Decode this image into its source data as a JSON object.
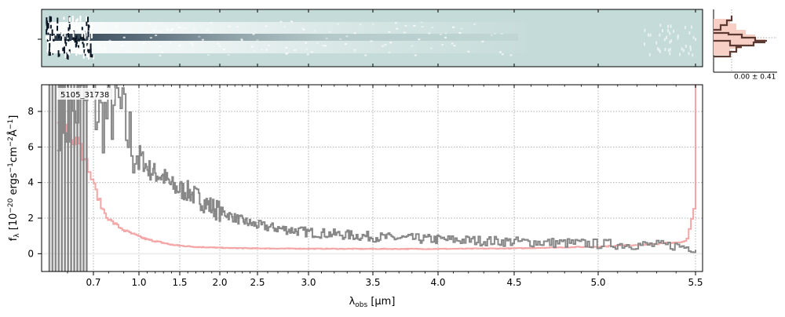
{
  "chart_data": {
    "type": "line",
    "spectrum_label": "5105_31738",
    "xlabel_main": "λ",
    "xlabel_sub": "obs",
    "xlabel_unit": " [μm]",
    "ylabel": "f_λ [10^-20 ergs^-1 cm^-2 Å^-1]",
    "ylabel_main": "f",
    "ylabel_sub": "λ",
    "ylabel_open": " [10",
    "ylabel_e1": "−20",
    "ylabel_ergs": " ergs",
    "ylabel_e2": "−1",
    "ylabel_cm": "cm",
    "ylabel_e3": "−2",
    "ylabel_A": "Å",
    "ylabel_e4": "−1",
    "ylabel_close": "]",
    "x_ticks": [
      0.7,
      1.0,
      1.5,
      2.0,
      2.5,
      3.0,
      3.5,
      4.0,
      4.5,
      5.0,
      5.5
    ],
    "x_tick_labels": [
      "0.7",
      "1.0",
      "1.5",
      "2.0",
      "2.5",
      "3.0",
      "3.5",
      "4.0",
      "4.5",
      "5.0",
      "5.5"
    ],
    "y_ticks": [
      0,
      2,
      4,
      6,
      8
    ],
    "y_tick_labels": [
      "0",
      "2",
      "4",
      "6",
      "8"
    ],
    "xlim": [
      0.5,
      5.52
    ],
    "ylim": [
      -1.0,
      9.5
    ],
    "grid": true,
    "series": [
      {
        "role": "flux",
        "color": "#888888",
        "x": [
          0.56,
          0.6,
          0.65,
          0.7,
          0.75,
          0.8,
          0.85,
          0.9,
          0.95,
          1.0,
          1.05,
          1.1,
          1.2,
          1.3,
          1.4,
          1.5,
          1.6,
          1.7,
          1.8,
          1.9,
          2.0,
          2.2,
          2.4,
          2.6,
          2.8,
          3.0,
          3.2,
          3.4,
          3.6,
          3.8,
          4.0,
          4.2,
          4.4,
          4.6,
          4.8,
          5.0,
          5.2,
          5.4,
          5.5
        ],
        "y": [
          8.0,
          7.5,
          8.5,
          8.3,
          7.6,
          7.8,
          8.6,
          7.2,
          6.2,
          5.6,
          5.2,
          4.8,
          4.5,
          4.3,
          3.8,
          3.6,
          3.5,
          3.2,
          2.9,
          2.6,
          2.4,
          2.0,
          1.7,
          1.5,
          1.35,
          1.2,
          1.1,
          1.0,
          0.9,
          0.85,
          0.8,
          0.75,
          0.7,
          0.65,
          0.6,
          0.55,
          0.5,
          0.45,
          0.3
        ]
      },
      {
        "role": "error",
        "color": "#f4a6a6",
        "x": [
          0.56,
          0.6,
          0.63,
          0.66,
          0.7,
          0.75,
          0.8,
          0.9,
          1.0,
          1.1,
          1.2,
          1.3,
          1.4,
          1.5,
          1.7,
          1.9,
          2.1,
          2.5,
          3.0,
          3.5,
          4.0,
          4.5,
          5.0,
          5.3,
          5.45,
          5.49,
          5.5
        ],
        "y": [
          7.5,
          6.9,
          6.3,
          5.4,
          3.8,
          2.6,
          1.9,
          1.3,
          0.95,
          0.8,
          0.7,
          0.6,
          0.5,
          0.45,
          0.38,
          0.35,
          0.32,
          0.3,
          0.28,
          0.27,
          0.27,
          0.3,
          0.4,
          0.55,
          0.7,
          2.5,
          9.5
        ]
      }
    ]
  },
  "side_panel": {
    "label": "0.00 ± 0.41"
  }
}
